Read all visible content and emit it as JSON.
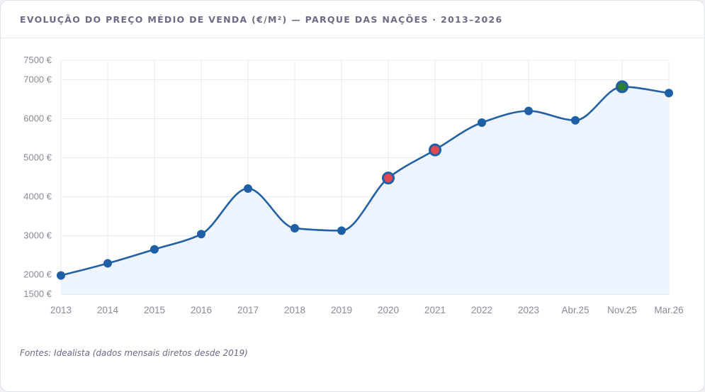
{
  "header": {
    "title": "EVOLUÇÃO DO PREÇO MÉDIO DE VENDA (€/M²) — PARQUE DAS NAÇÕES · 2013–2026"
  },
  "footer": {
    "source": "Fontes: Idealista (dados mensais diretos desde 2019)"
  },
  "colors": {
    "line": "#2360a5",
    "area": "#eef4fd",
    "point": "#1f5fa6",
    "highlight_red": "#e2484f",
    "highlight_green": "#2f7d3a",
    "grid": "#e8ebf0",
    "tick": "#8a8a96"
  },
  "chart_data": {
    "type": "line",
    "title": "EVOLUÇÃO DO PREÇO MÉDIO DE VENDA (€/M²) — PARQUE DAS NAÇÕES · 2013–2026",
    "xlabel": "",
    "ylabel": "",
    "ylim": [
      1500,
      7500
    ],
    "yticks": [
      1500,
      2000,
      3000,
      4000,
      5000,
      6000,
      7000,
      7500
    ],
    "ytick_suffix": " €",
    "grid": true,
    "legend": "none",
    "categories": [
      "2013",
      "2014",
      "2015",
      "2016",
      "2017",
      "2018",
      "2019",
      "2020",
      "2021",
      "2022",
      "2023",
      "Abr.25",
      "Nov.25",
      "Mar.26"
    ],
    "values": [
      1980,
      2290,
      2650,
      3040,
      4210,
      3190,
      3130,
      4480,
      5200,
      5900,
      6200,
      5960,
      6820,
      6660
    ],
    "highlights": [
      {
        "category": "2020",
        "color": "red"
      },
      {
        "category": "2021",
        "color": "red"
      },
      {
        "category": "Nov.25",
        "color": "green"
      }
    ]
  }
}
